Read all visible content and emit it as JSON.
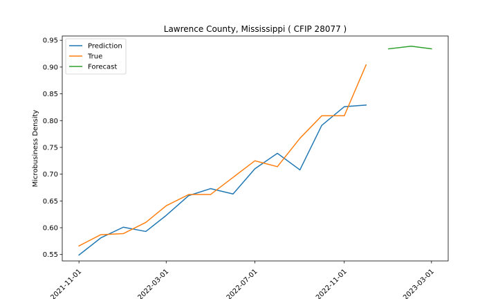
{
  "chart_data": {
    "type": "line",
    "title": "Lawrence County, Mississippi ( CFIP 28077 )",
    "xlabel": "",
    "ylabel": "Microbusiness Density",
    "x_ticks": [
      "2021-11-01",
      "2022-03-01",
      "2022-07-01",
      "2022-11-01",
      "2023-03-01"
    ],
    "y_ticks": [
      0.55,
      0.6,
      0.65,
      0.7,
      0.75,
      0.8,
      0.85,
      0.9,
      0.95
    ],
    "ylim": [
      0.538,
      0.958
    ],
    "xlim": [
      "2021-10-09",
      "2023-03-24"
    ],
    "grid": false,
    "legend_position": "top-left",
    "series": [
      {
        "name": "Prediction",
        "color": "#1f77b4",
        "x": [
          "2021-11-01",
          "2021-12-01",
          "2022-01-01",
          "2022-02-01",
          "2022-03-01",
          "2022-04-01",
          "2022-05-01",
          "2022-06-01",
          "2022-07-01",
          "2022-08-01",
          "2022-09-01",
          "2022-10-01",
          "2022-11-01",
          "2022-12-01"
        ],
        "values": [
          0.549,
          0.581,
          0.601,
          0.593,
          0.623,
          0.66,
          0.673,
          0.663,
          0.71,
          0.739,
          0.708,
          0.791,
          0.826,
          0.829
        ]
      },
      {
        "name": "True",
        "color": "#ff7f0e",
        "x": [
          "2021-11-01",
          "2021-12-01",
          "2022-01-01",
          "2022-02-01",
          "2022-03-01",
          "2022-04-01",
          "2022-05-01",
          "2022-06-01",
          "2022-07-01",
          "2022-08-01",
          "2022-09-01",
          "2022-10-01",
          "2022-11-01",
          "2022-12-01"
        ],
        "values": [
          0.566,
          0.587,
          0.589,
          0.61,
          0.641,
          0.662,
          0.662,
          0.694,
          0.725,
          0.714,
          0.767,
          0.809,
          0.809,
          0.904
        ]
      },
      {
        "name": "Forecast",
        "color": "#2ca02c",
        "x": [
          "2023-01-01",
          "2023-02-01",
          "2023-03-01"
        ],
        "values": [
          0.934,
          0.939,
          0.934
        ]
      }
    ]
  }
}
